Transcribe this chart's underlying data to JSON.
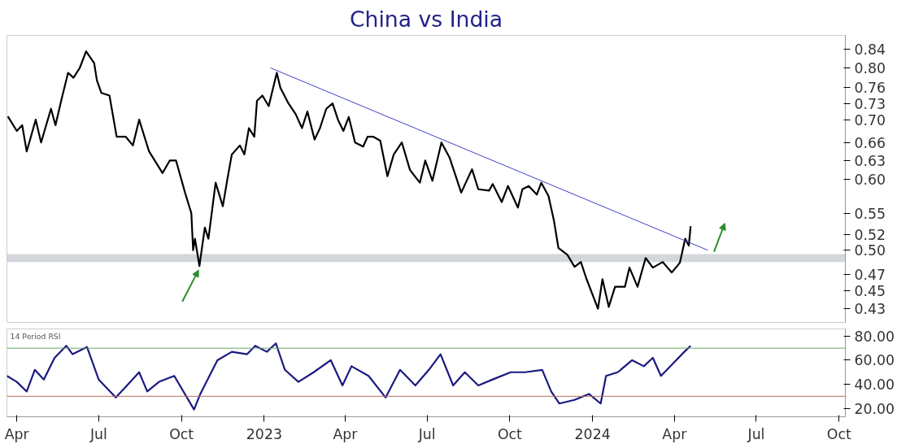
{
  "chart_data": [
    {
      "type": "line",
      "title": "China vs India",
      "log": "y",
      "tick_labels": "y",
      "grid": false,
      "xlim": [
        "2022-03-21",
        "2024-10-08"
      ],
      "ylim": [
        0.415,
        0.87
      ],
      "yticks": [
        0.84,
        {
          "value": 0.8,
          "label": "0.80"
        },
        0.76,
        0.73,
        {
          "value": 0.7,
          "label": "0.70"
        },
        0.66,
        0.63,
        {
          "value": 0.6,
          "label": "0.60"
        },
        0.55,
        0.52,
        {
          "value": 0.5,
          "label": "0.50"
        },
        0.47,
        0.45,
        0.43
      ],
      "bands": [
        {
          "axis": "y",
          "from": 0.485,
          "to": 0.495,
          "color": "#d3d6da"
        }
      ],
      "series": [
        {
          "color": "#000000",
          "x": [
            "2022-03-22",
            "2022-04-01",
            "2022-04-07",
            "2022-04-12",
            "2022-04-22",
            "2022-04-28",
            "2022-05-09",
            "2022-05-14",
            "2022-05-21",
            "2022-05-28",
            "2022-06-03",
            "2022-06-10",
            "2022-06-17",
            "2022-06-26",
            "2022-06-29",
            "2022-07-04",
            "2022-07-13",
            "2022-07-21",
            "2022-07-31",
            "2022-08-08",
            "2022-08-15",
            "2022-08-26",
            "2022-09-10",
            "2022-09-18",
            "2022-09-25",
            "2022-10-05",
            "2022-10-12",
            "2022-10-14",
            "2022-10-16",
            "2022-10-21",
            "2022-10-27",
            "2022-10-31",
            "2022-11-08",
            "2022-11-16",
            "2022-11-21",
            "2022-11-26",
            "2022-12-05",
            "2022-12-10",
            "2022-12-15",
            "2022-12-21",
            "2022-12-24",
            "2022-12-30",
            "2023-01-06",
            "2023-01-15",
            "2023-01-19",
            "2023-01-28",
            "2023-02-05",
            "2023-02-12",
            "2023-02-18",
            "2023-02-26",
            "2023-03-04",
            "2023-03-11",
            "2023-03-18",
            "2023-03-24",
            "2023-03-30",
            "2023-04-05",
            "2023-04-12",
            "2023-04-21",
            "2023-04-26",
            "2023-05-02",
            "2023-05-10",
            "2023-05-18",
            "2023-05-25",
            "2023-06-03",
            "2023-06-12",
            "2023-06-23",
            "2023-06-29",
            "2023-07-07",
            "2023-07-17",
            "2023-07-26",
            "2023-08-08",
            "2023-08-20",
            "2023-08-27",
            "2023-09-08",
            "2023-09-12",
            "2023-09-22",
            "2023-09-29",
            "2023-10-10",
            "2023-10-15",
            "2023-10-22",
            "2023-10-31",
            "2023-11-05",
            "2023-11-13",
            "2023-11-19",
            "2023-11-24",
            "2023-12-04",
            "2023-12-12",
            "2023-12-19",
            "2023-12-25",
            "2024-01-07",
            "2024-01-12",
            "2024-01-19",
            "2024-01-26",
            "2024-02-06",
            "2024-02-11",
            "2024-02-20",
            "2024-02-29",
            "2024-03-08",
            "2024-03-19",
            "2024-03-29",
            "2024-04-07",
            "2024-04-13",
            "2024-04-17",
            "2024-04-19"
          ],
          "values": [
            0.706,
            0.68,
            0.69,
            0.645,
            0.7,
            0.66,
            0.72,
            0.69,
            0.74,
            0.79,
            0.78,
            0.8,
            0.835,
            0.81,
            0.775,
            0.75,
            0.745,
            0.67,
            0.67,
            0.655,
            0.7,
            0.645,
            0.61,
            0.63,
            0.63,
            0.58,
            0.55,
            0.5,
            0.515,
            0.48,
            0.53,
            0.515,
            0.595,
            0.56,
            0.6,
            0.64,
            0.655,
            0.64,
            0.685,
            0.67,
            0.735,
            0.745,
            0.725,
            0.79,
            0.76,
            0.73,
            0.71,
            0.685,
            0.715,
            0.665,
            0.685,
            0.72,
            0.73,
            0.7,
            0.68,
            0.705,
            0.66,
            0.653,
            0.67,
            0.67,
            0.663,
            0.605,
            0.64,
            0.66,
            0.615,
            0.595,
            0.63,
            0.598,
            0.66,
            0.635,
            0.58,
            0.616,
            0.585,
            0.583,
            0.593,
            0.566,
            0.59,
            0.558,
            0.585,
            0.59,
            0.577,
            0.595,
            0.575,
            0.54,
            0.503,
            0.494,
            0.479,
            0.485,
            0.465,
            0.43,
            0.464,
            0.432,
            0.455,
            0.455,
            0.478,
            0.455,
            0.49,
            0.478,
            0.485,
            0.472,
            0.484,
            0.515,
            0.506,
            0.532
          ]
        },
        {
          "type": "line",
          "color": "#4040c8",
          "x": [
            "2023-01-08",
            "2024-05-08"
          ],
          "values": [
            0.8,
            0.5
          ]
        }
      ]
    },
    {
      "type": "line",
      "grid": false,
      "annotations": [
        "14 Period RSI"
      ],
      "xlim": [
        "2022-03-21",
        "2024-10-08"
      ],
      "ylim": [
        13,
        86
      ],
      "yticks": [
        {
          "value": 80,
          "label": "80.00"
        },
        {
          "value": 60,
          "label": "60.00"
        },
        {
          "value": 40,
          "label": "40.00"
        },
        {
          "value": 20,
          "label": "20.00"
        }
      ],
      "xticks": [
        {
          "value": "2022-04-01",
          "label": "Apr"
        },
        {
          "value": "2022-07-01",
          "label": "Jul"
        },
        {
          "value": "2022-10-01",
          "label": "Oct"
        },
        {
          "value": "2023-01-01",
          "label": "2023"
        },
        {
          "value": "2023-04-01",
          "label": "Apr"
        },
        {
          "value": "2023-07-01",
          "label": "Jul"
        },
        {
          "value": "2023-10-01",
          "label": "Oct"
        },
        {
          "value": "2024-01-01",
          "label": "2024"
        },
        {
          "value": "2024-04-01",
          "label": "Apr"
        },
        {
          "value": "2024-07-01",
          "label": "Jul"
        },
        {
          "value": "2024-10-01",
          "label": "Oct"
        }
      ],
      "ref_lines": [
        {
          "axis": "y",
          "value": 70,
          "color": "#6aa86a"
        },
        {
          "axis": "y",
          "value": 30,
          "color": "#b07060"
        }
      ],
      "series": [
        {
          "color": "#1a1a80",
          "x": [
            "2022-03-21",
            "2022-04-01",
            "2022-04-12",
            "2022-04-21",
            "2022-05-01",
            "2022-05-13",
            "2022-05-26",
            "2022-06-02",
            "2022-06-18",
            "2022-07-01",
            "2022-07-20",
            "2022-07-30",
            "2022-08-15",
            "2022-08-24",
            "2022-09-06",
            "2022-09-23",
            "2022-10-15",
            "2022-10-22",
            "2022-11-10",
            "2022-11-26",
            "2022-12-13",
            "2022-12-22",
            "2023-01-04",
            "2023-01-14",
            "2023-01-24",
            "2023-02-08",
            "2023-02-25",
            "2023-03-16",
            "2023-03-29",
            "2023-04-08",
            "2023-04-27",
            "2023-05-16",
            "2023-06-01",
            "2023-06-18",
            "2023-07-03",
            "2023-07-16",
            "2023-07-30",
            "2023-08-12",
            "2023-08-27",
            "2023-09-12",
            "2023-10-02",
            "2023-10-18",
            "2023-11-06",
            "2023-11-16",
            "2023-11-25",
            "2023-12-12",
            "2023-12-28",
            "2024-01-10",
            "2024-01-16",
            "2024-01-29",
            "2024-02-14",
            "2024-02-27",
            "2024-03-08",
            "2024-03-17",
            "2024-03-30",
            "2024-04-12",
            "2024-04-19"
          ],
          "values": [
            47,
            42,
            34,
            52,
            44,
            62,
            72,
            65,
            71,
            44,
            29,
            37,
            50,
            34,
            42,
            47,
            19,
            32,
            60,
            67,
            65,
            72,
            67,
            74,
            52,
            42,
            50,
            60,
            39,
            55,
            47,
            29,
            52,
            39,
            52,
            65,
            39,
            50,
            39,
            44,
            50,
            50,
            52,
            34,
            24,
            27,
            32,
            24,
            47,
            50,
            60,
            55,
            62,
            47,
            57,
            67,
            72
          ]
        }
      ]
    }
  ]
}
